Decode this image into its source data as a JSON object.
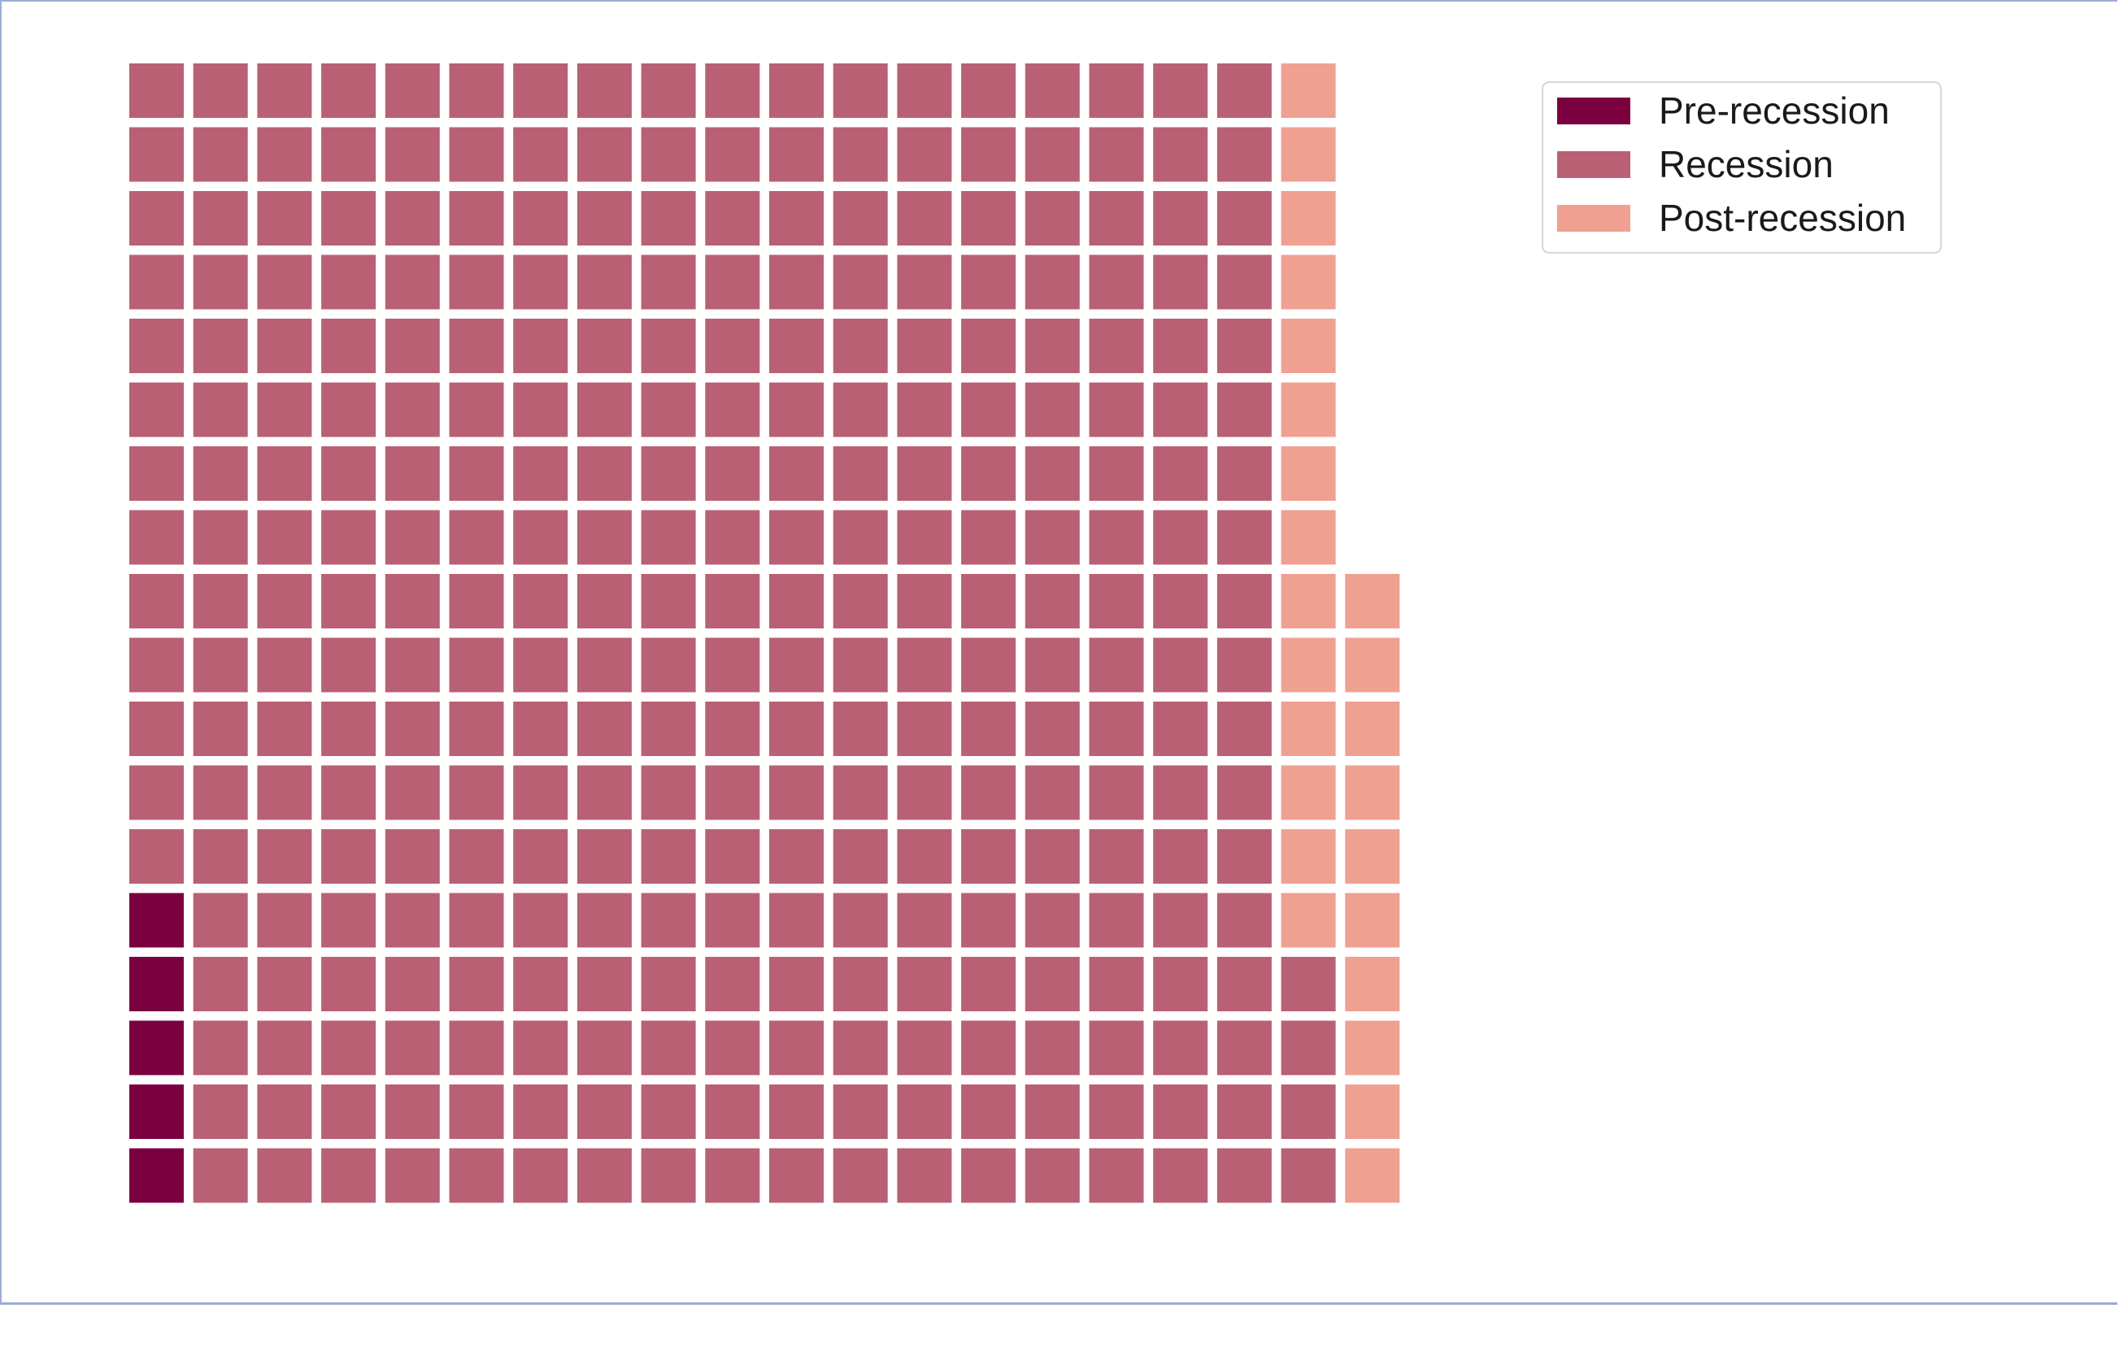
{
  "chart_data": {
    "type": "waffle",
    "rows": 18,
    "fill_order": "column-major, bottom-to-top, left-to-right",
    "series": [
      {
        "name": "Pre-recession",
        "value": 5,
        "color": "#7b0040"
      },
      {
        "name": "Recession",
        "value": 323,
        "color": "#b96074"
      },
      {
        "name": "Post-recession",
        "value": 24,
        "color": "#f0a090"
      }
    ],
    "legend": {
      "position": "top-right"
    },
    "grid": false
  }
}
